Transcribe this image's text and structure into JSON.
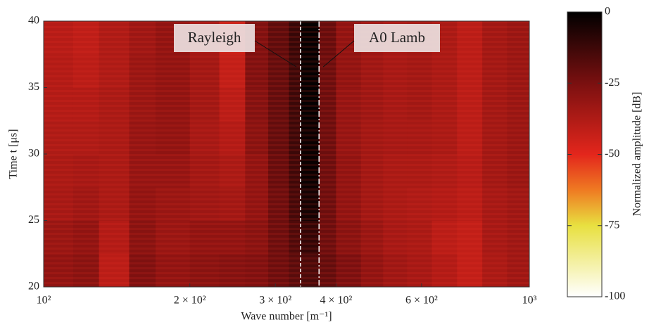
{
  "chart_data": {
    "type": "heatmap",
    "xlabel": "Wave number [m⁻¹]",
    "ylabel": "Time t [μs]",
    "colorbar_label": "Normalized amplitude [dB]",
    "xscale": "log",
    "xlim": [
      100,
      1000
    ],
    "xticks": [
      {
        "value": 100,
        "label": "10²"
      },
      {
        "value": 200,
        "label": "2 × 10²"
      },
      {
        "value": 300,
        "label": "3 × 10²"
      },
      {
        "value": 400,
        "label": "4 × 10²"
      },
      {
        "value": 600,
        "label": "6 × 10²"
      },
      {
        "value": 1000,
        "label": "10³"
      }
    ],
    "ylim": [
      20,
      40
    ],
    "yticks": [
      20,
      25,
      30,
      35,
      40
    ],
    "clim": [
      -100,
      0
    ],
    "cticks": [
      0,
      -25,
      -50,
      -75,
      -100
    ],
    "colormap": [
      {
        "value": 0,
        "color": "#000000"
      },
      {
        "value": -25,
        "color": "#7a1010"
      },
      {
        "value": -50,
        "color": "#e3261c"
      },
      {
        "value": -62.5,
        "color": "#ef7a22"
      },
      {
        "value": -75,
        "color": "#e8e040"
      },
      {
        "value": -100,
        "color": "#ffffff"
      }
    ],
    "x_edges": [
      100,
      115,
      130,
      150,
      170,
      200,
      230,
      260,
      290,
      320,
      338,
      369,
      400,
      450,
      500,
      560,
      630,
      710,
      800,
      900,
      1000
    ],
    "y_edges": [
      20,
      22.5,
      25,
      27.5,
      30,
      32.5,
      35,
      37.5,
      40
    ],
    "z": [
      [
        -30,
        -28,
        -40,
        -26,
        -30,
        -28,
        -27,
        -26,
        -22,
        -18,
        -15,
        -20,
        -25,
        -30,
        -33,
        -35,
        -38,
        -42,
        -36,
        -33
      ],
      [
        -32,
        -30,
        -38,
        -28,
        -32,
        -30,
        -30,
        -28,
        -22,
        -16,
        -10,
        -22,
        -28,
        -32,
        -35,
        -36,
        -40,
        -42,
        -35,
        -33
      ],
      [
        -35,
        -33,
        -36,
        -30,
        -32,
        -33,
        -34,
        -30,
        -22,
        -14,
        -4,
        -22,
        -30,
        -34,
        -36,
        -37,
        -38,
        -40,
        -35,
        -33
      ],
      [
        -36,
        -35,
        -36,
        -31,
        -31,
        -34,
        -36,
        -30,
        -21,
        -13,
        -2,
        -22,
        -30,
        -34,
        -36,
        -36,
        -37,
        -39,
        -34,
        -32
      ],
      [
        -37,
        -37,
        -36,
        -31,
        -30,
        -35,
        -38,
        -28,
        -20,
        -12,
        -2,
        -22,
        -31,
        -34,
        -35,
        -35,
        -36,
        -40,
        -34,
        -32
      ],
      [
        -38,
        -38,
        -36,
        -32,
        -30,
        -34,
        -40,
        -27,
        -20,
        -12,
        -1,
        -22,
        -31,
        -33,
        -35,
        -34,
        -36,
        -40,
        -34,
        -32
      ],
      [
        -38,
        -40,
        -37,
        -32,
        -30,
        -34,
        -42,
        -26,
        -20,
        -12,
        -1,
        -22,
        -30,
        -33,
        -35,
        -34,
        -36,
        -40,
        -34,
        -32
      ],
      [
        -39,
        -41,
        -37,
        -33,
        -30,
        -35,
        -44,
        -26,
        -19,
        -11,
        -1,
        -21,
        -30,
        -33,
        -35,
        -34,
        -36,
        -40,
        -34,
        -32
      ]
    ],
    "annotations": [
      {
        "text": "Rayleigh",
        "x": 338,
        "line_style": "dashed"
      },
      {
        "text": "A0 Lamb",
        "x": 369,
        "line_style": "dashdot"
      }
    ]
  }
}
